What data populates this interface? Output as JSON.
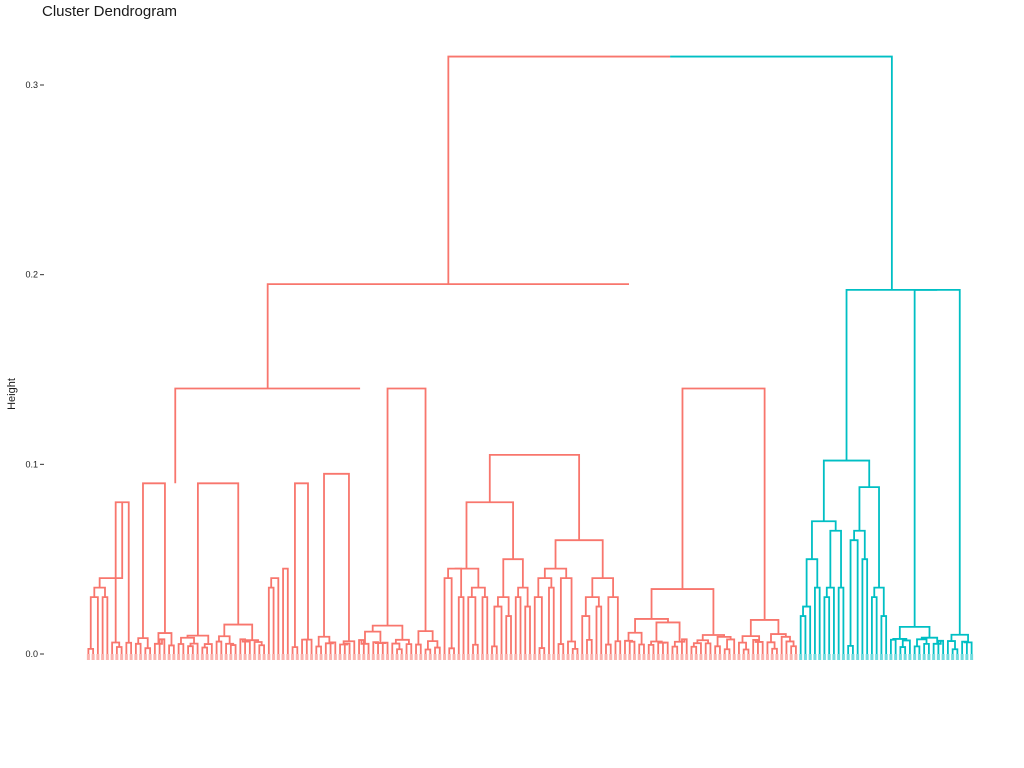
{
  "title": "Cluster Dendrogram",
  "chart_data": {
    "type": "dendrogram",
    "title": "Cluster Dendrogram",
    "ylabel": "Height",
    "ylim": [
      0,
      0.32
    ],
    "yticks": [
      0.0,
      0.1,
      0.2,
      0.3
    ],
    "ytick_labels": [
      "0.0",
      "0.1",
      "0.2",
      "0.3"
    ],
    "grid": false,
    "leaf_count": 187,
    "cluster_colors": {
      "cluster-1": "#F8766D",
      "cluster-2": "#00BFC4"
    },
    "cluster_leaf_counts": {
      "cluster-1": 150,
      "cluster-2": 37
    },
    "tree": [
      [
        [
          [
            [
              [
                0.03,
                0.03
              ],
              0.04,
              0.08
            ],
            [
              [
                0.03,
                0.03
              ],
              0.05,
              [
                0.02,
                0.02
              ]
            ],
            0.09,
            0.09
          ],
          0.14,
          [
            [
              [
                0.035,
                0.03
              ],
              [
                0.03,
                0.025
              ],
              0.045,
              0.09
            ],
            [
              0.07,
              0.03
            ],
            0.095,
            0.14
          ]
        ],
        0.195,
        [
          [
            [
              [
                0.04,
                0.03
              ],
              0.045,
              [
                0.03,
                0.03
              ]
            ],
            0.08,
            [
              [
                0.025,
                0.02
              ],
              0.05,
              [
                0.03,
                0.025
              ]
            ]
          ],
          0.105,
          [
            [
              [
                0.03,
                0.035
              ],
              0.045,
              0.04
            ],
            0.06,
            [
              [
                0.02,
                0.025
              ],
              0.04,
              0.03
            ]
          ],
          0.14,
          [
            [
              0.05,
              0.03
            ],
            0.11,
            [
              0.06,
              0.02
            ]
          ]
        ]
      ],
      0.315,
      [
        [
          [
            [
              0.02,
              0.015
            ],
            0.05,
            [
              0.02,
              0.03
            ]
          ],
          0.07,
          [
            [
              0.03,
              0.025
            ],
            0.065,
            [
              0.02,
              0.03
            ]
          ]
        ],
        0.102,
        [
          [
            0.06,
            0.05
          ],
          0.088,
          [
            0.03,
            0.02
          ]
        ],
        0.192
      ]
    ]
  }
}
